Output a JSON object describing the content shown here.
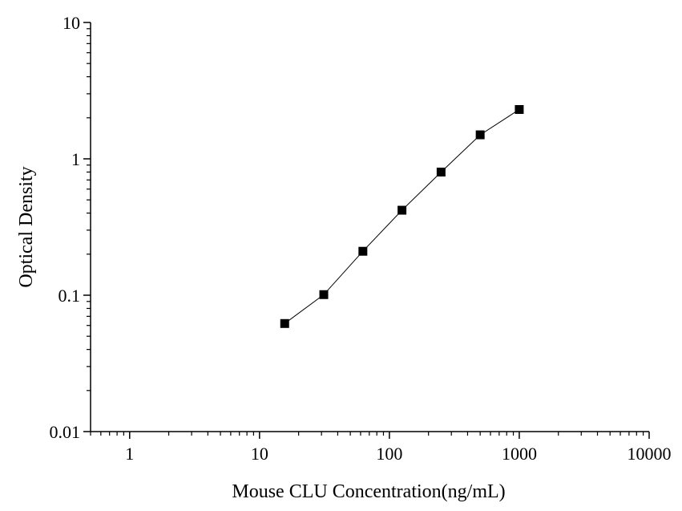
{
  "chart_data": {
    "type": "scatter",
    "title": "",
    "xlabel": "Mouse CLU Concentration(ng/mL)",
    "ylabel": "Optical Density",
    "x_scale": "log",
    "y_scale": "log",
    "xlim": [
      0.5,
      10000
    ],
    "ylim": [
      0.01,
      10
    ],
    "x_ticks": [
      1,
      10,
      100,
      1000,
      10000
    ],
    "x_tick_labels": [
      "1",
      "10",
      "100",
      "1000",
      "10000"
    ],
    "y_ticks": [
      0.01,
      0.1,
      1,
      10
    ],
    "y_tick_labels": [
      "0.01",
      "0.1",
      "1",
      "10"
    ],
    "grid": false,
    "legend": false,
    "marker": "square",
    "connected": true,
    "color": "#000000",
    "series": [
      {
        "x": [
          15.625,
          31.25,
          62.5,
          125,
          250,
          500,
          1000
        ],
        "y": [
          0.062,
          0.101,
          0.21,
          0.42,
          0.8,
          1.5,
          2.3
        ]
      }
    ]
  }
}
